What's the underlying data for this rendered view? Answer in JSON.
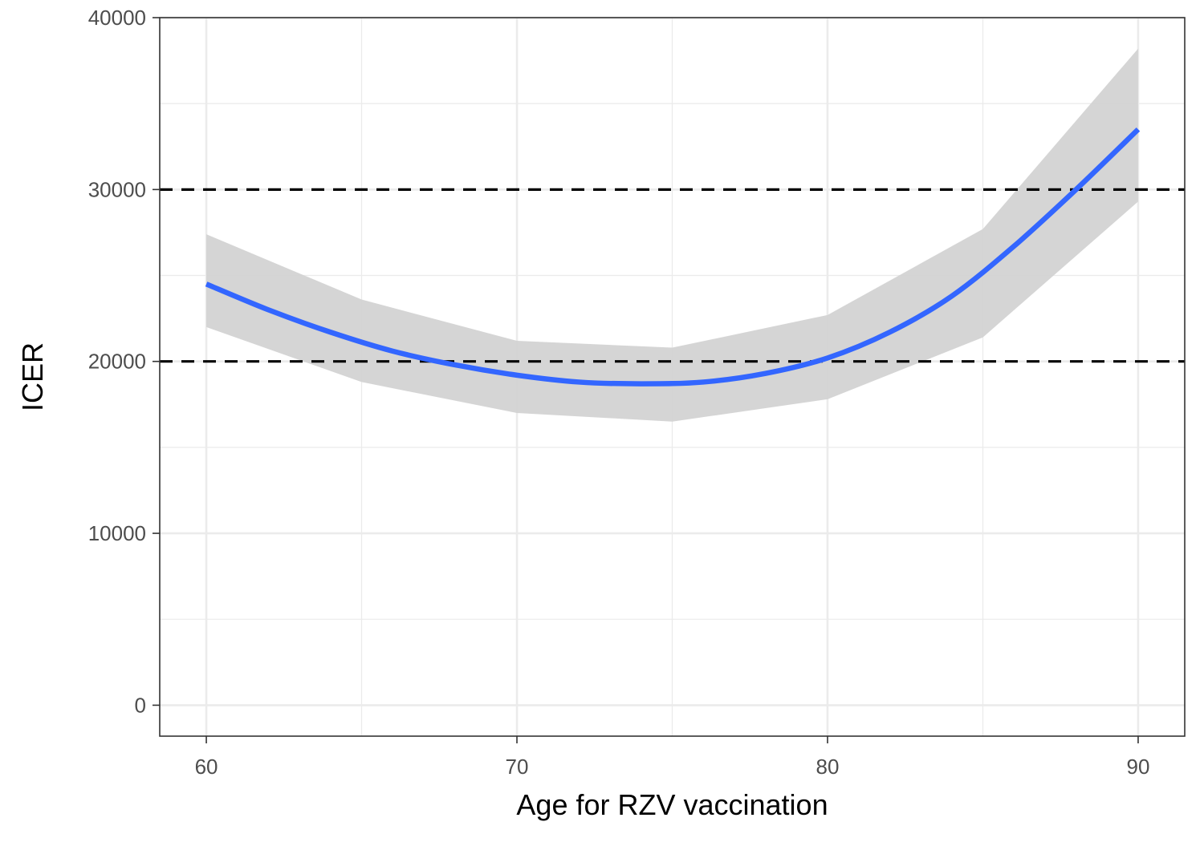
{
  "chart_data": {
    "type": "line",
    "title": "",
    "xlabel": "Age for RZV vaccination",
    "ylabel": "ICER",
    "xlim": [
      58.5,
      91.5
    ],
    "ylim": [
      -1800,
      40000
    ],
    "x_ticks": [
      60,
      70,
      80,
      90
    ],
    "y_ticks": [
      0,
      10000,
      20000,
      30000,
      40000
    ],
    "x_minor_gridlines": [
      65,
      75,
      85
    ],
    "y_minor_gridlines": [
      5000,
      15000,
      25000,
      35000
    ],
    "grid": true,
    "legend": "none",
    "series": [
      {
        "x": [
          60,
          62,
          64,
          66,
          68,
          70,
          72,
          74,
          76,
          78,
          80,
          82,
          84,
          86,
          88,
          90
        ],
        "values": [
          24500,
          23000,
          21700,
          20600,
          19800,
          19200,
          18800,
          18700,
          18800,
          19300,
          20200,
          21700,
          23800,
          26700,
          30000,
          33500
        ],
        "color": "#3366ff"
      }
    ],
    "confidence_band": {
      "x": [
        60,
        65,
        70,
        75,
        80,
        85,
        90
      ],
      "lower": [
        22000,
        18800,
        17000,
        16500,
        17800,
        21400,
        29300
      ],
      "upper": [
        27400,
        23600,
        21200,
        20800,
        22700,
        27700,
        38200
      ],
      "color": "#d3d3d3"
    },
    "reference_lines": [
      {
        "y": 20000,
        "style": "dashed",
        "color": "#000000"
      },
      {
        "y": 30000,
        "style": "dashed",
        "color": "#000000"
      }
    ]
  }
}
